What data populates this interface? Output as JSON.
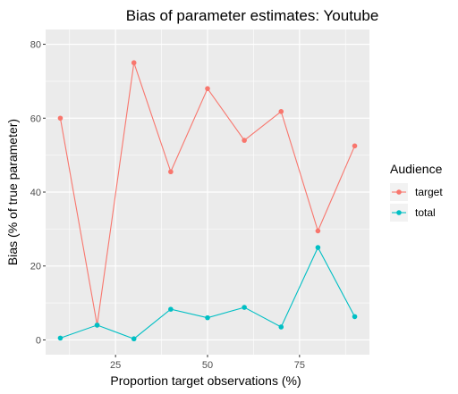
{
  "chart_data": {
    "type": "line",
    "title": "Bias of parameter estimates: Youtube",
    "xlabel": "Proportion target observations (%)",
    "ylabel": "Bias (% of true parameter)",
    "xlim": [
      6,
      94
    ],
    "ylim": [
      -4,
      84
    ],
    "x_ticks": [
      25,
      50,
      75
    ],
    "y_ticks": [
      0,
      20,
      40,
      60,
      80
    ],
    "x": [
      10,
      20,
      30,
      40,
      50,
      60,
      70,
      80,
      90
    ],
    "series": [
      {
        "name": "target",
        "color": "#F8766D",
        "values": [
          60,
          4,
          75,
          45.5,
          68,
          54,
          61.8,
          29.5,
          52.5
        ]
      },
      {
        "name": "total",
        "color": "#00BFC4",
        "values": [
          0.5,
          4,
          0.3,
          8.3,
          6,
          8.8,
          3.5,
          25,
          6.3
        ]
      }
    ],
    "legend": {
      "title": "Audience",
      "position": "right"
    },
    "grid": true,
    "panel_background": "#EBEBEB"
  }
}
